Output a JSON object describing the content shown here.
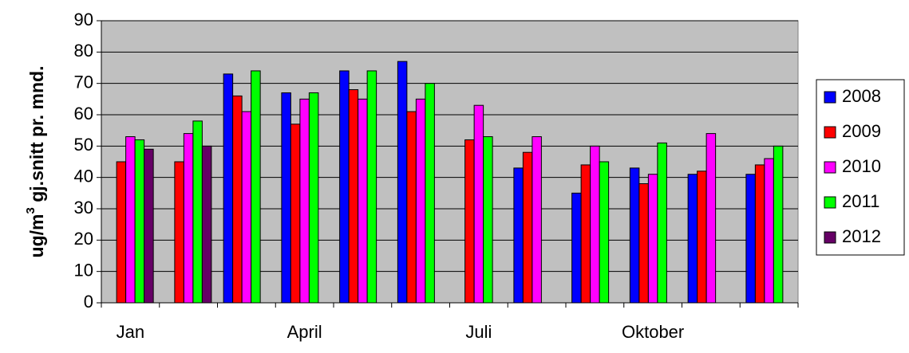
{
  "chart_data": {
    "type": "bar",
    "y_label": [
      "ug/m",
      "3",
      " gj.snitt pr. mnd."
    ],
    "categories": [
      "Jan",
      null,
      null,
      "April",
      null,
      null,
      "Juli",
      null,
      null,
      "Oktober",
      null,
      null
    ],
    "series": [
      {
        "name": "2008",
        "color": "#0000ff",
        "values": [
          null,
          null,
          73,
          67,
          74,
          77,
          null,
          43,
          35,
          43,
          41,
          41
        ]
      },
      {
        "name": "2009",
        "color": "#ff0000",
        "values": [
          45,
          45,
          66,
          57,
          68,
          61,
          52,
          48,
          44,
          38,
          42,
          44
        ]
      },
      {
        "name": "2010",
        "color": "#ff00ff",
        "values": [
          53,
          54,
          61,
          65,
          65,
          65,
          63,
          53,
          50,
          41,
          54,
          46
        ]
      },
      {
        "name": "2011",
        "color": "#00ff00",
        "values": [
          52,
          58,
          74,
          67,
          74,
          70,
          53,
          null,
          45,
          51,
          null,
          50
        ]
      },
      {
        "name": "2012",
        "color": "#660066",
        "values": [
          49,
          50,
          null,
          null,
          null,
          null,
          null,
          null,
          null,
          null,
          null,
          null
        ]
      }
    ],
    "ylim": [
      0,
      90
    ],
    "yticks": [
      0,
      10,
      20,
      30,
      40,
      50,
      60,
      70,
      80,
      90
    ],
    "grid": true,
    "plot_background": "#c0c0c0",
    "legend": "right"
  }
}
